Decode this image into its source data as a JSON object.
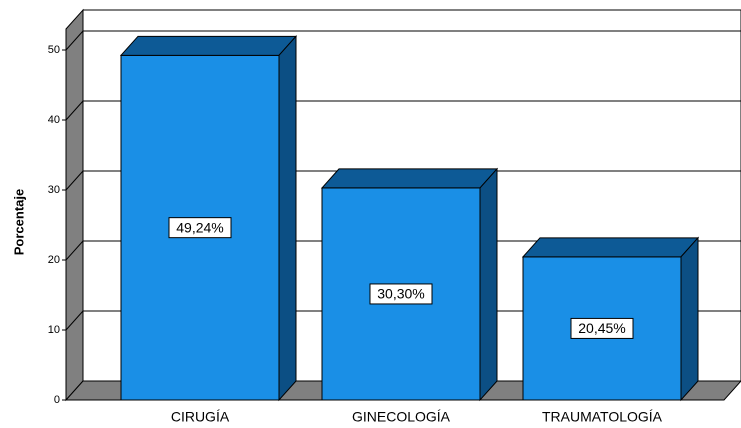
{
  "chart_data": {
    "type": "bar3d",
    "categories": [
      "CIRUGÍA",
      "GINECOLOGÍA",
      "TRAUMATOLOGÍA"
    ],
    "values": [
      49.24,
      30.3,
      20.45
    ],
    "value_labels": [
      "49,24%",
      "30,30%",
      "20,45%"
    ],
    "color": "#1a8fe6",
    "ylabel": "Porcentaje",
    "ylim": [
      0,
      53
    ],
    "yticks": [
      0,
      10,
      20,
      30,
      40,
      50
    ],
    "grid": true
  }
}
